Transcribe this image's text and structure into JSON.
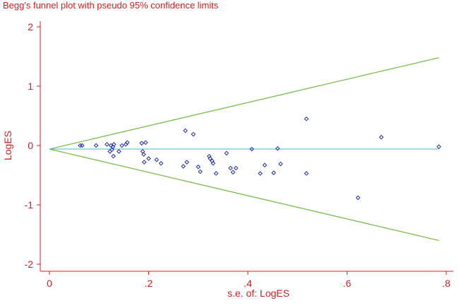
{
  "chart_data": {
    "type": "scatter",
    "title": "Begg's funnel plot with pseudo 95% confidence limits",
    "xlabel": "s.e. of: LogES",
    "ylabel": "LogES",
    "xlim": [
      0,
      0.8
    ],
    "ylim": [
      -2,
      2
    ],
    "x_ticks": [
      {
        "value": 0,
        "label": "0"
      },
      {
        "value": 0.2,
        "label": ".2"
      },
      {
        "value": 0.4,
        "label": ".4"
      },
      {
        "value": 0.6,
        "label": ".6"
      },
      {
        "value": 0.8,
        "label": ".8"
      }
    ],
    "y_ticks": [
      {
        "value": 2,
        "label": "2"
      },
      {
        "value": 1,
        "label": "1"
      },
      {
        "value": 0,
        "label": "0"
      },
      {
        "value": -1,
        "label": "-1"
      },
      {
        "value": -2,
        "label": "-2"
      }
    ],
    "pooled_estimate": -0.06,
    "confidence_limits": {
      "x": [
        0,
        0.785
      ],
      "upper": [
        -0.06,
        1.48
      ],
      "lower": [
        -0.06,
        -1.6
      ]
    },
    "series": [
      {
        "marker": "diamond",
        "x": [
          0.062,
          0.066,
          0.094,
          0.116,
          0.122,
          0.124,
          0.126,
          0.128,
          0.129,
          0.13,
          0.14,
          0.146,
          0.154,
          0.157,
          0.186,
          0.188,
          0.19,
          0.191,
          0.194,
          0.2,
          0.216,
          0.225,
          0.27,
          0.274,
          0.277,
          0.29,
          0.3,
          0.304,
          0.322,
          0.324,
          0.328,
          0.33,
          0.336,
          0.357,
          0.365,
          0.37,
          0.376,
          0.408,
          0.425,
          0.434,
          0.452,
          0.46,
          0.466,
          0.518,
          0.518,
          0.622,
          0.669,
          0.785
        ],
        "y": [
          0.0,
          0.0,
          0.0,
          0.02,
          -0.1,
          0.0,
          -0.07,
          -0.02,
          -0.18,
          0.02,
          -0.1,
          0.0,
          0.02,
          0.05,
          0.04,
          -0.1,
          -0.15,
          -0.28,
          0.05,
          -0.22,
          -0.24,
          -0.3,
          -0.35,
          0.25,
          -0.28,
          0.19,
          -0.36,
          -0.44,
          -0.18,
          -0.22,
          -0.26,
          -0.3,
          -0.47,
          -0.13,
          -0.38,
          -0.45,
          -0.38,
          -0.06,
          -0.47,
          -0.33,
          -0.46,
          -0.05,
          -0.31,
          0.45,
          -0.47,
          -0.88,
          0.14,
          -0.02
        ]
      }
    ]
  },
  "colors": {
    "text": "#d21f1f",
    "axis": "#d21f1f",
    "confidence_limits": "#6dbb3c",
    "pooled_line": "#3cbfd9",
    "markers": "#1f2fa8"
  }
}
